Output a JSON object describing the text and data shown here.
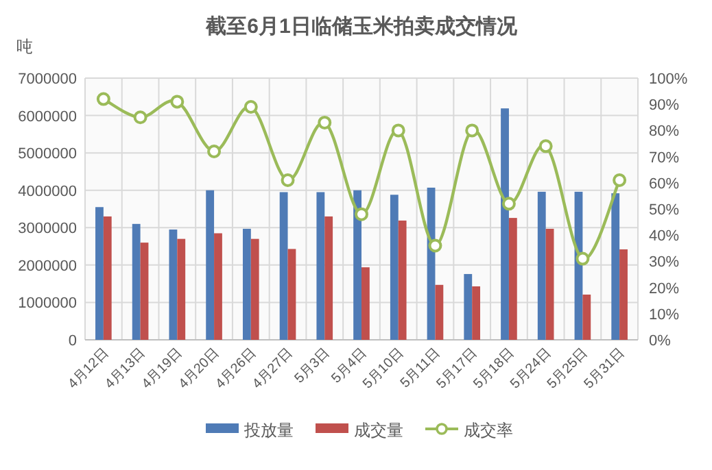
{
  "chart_data": {
    "type": "bar",
    "title": "截至6月1日临储玉米拍卖成交情况",
    "ylabel": "吨",
    "categories": [
      "4月12日",
      "4月13日",
      "4月19日",
      "4月20日",
      "4月26日",
      "4月27日",
      "5月3日",
      "5月4日",
      "5月10日",
      "5月11日",
      "5月17日",
      "5月18日",
      "5月24日",
      "5月25日",
      "5月31日"
    ],
    "series": [
      {
        "name": "投放量",
        "color": "#4f7bb6",
        "values": [
          3550000,
          3100000,
          2950000,
          4000000,
          2970000,
          3950000,
          3950000,
          4000000,
          3880000,
          4070000,
          1760000,
          6190000,
          3960000,
          3960000,
          3920000
        ]
      },
      {
        "name": "成交量",
        "color": "#c0504d",
        "values": [
          3300000,
          2600000,
          2700000,
          2850000,
          2700000,
          2430000,
          3300000,
          1940000,
          3190000,
          1470000,
          1430000,
          3260000,
          2970000,
          1210000,
          2420000
        ]
      },
      {
        "name": "成交率",
        "type": "line",
        "axis": "y2",
        "color": "#9bbb59",
        "values": [
          92,
          85,
          91,
          72,
          89,
          61,
          83,
          48,
          80,
          36,
          80,
          52,
          74,
          31,
          61
        ]
      }
    ],
    "ylim": [
      0,
      7000000
    ],
    "yticks": [
      0,
      1000000,
      2000000,
      3000000,
      4000000,
      5000000,
      6000000,
      7000000
    ],
    "y2lim": [
      0,
      100
    ],
    "y2ticks": [
      {
        "value": 0,
        "label": "0%"
      },
      {
        "value": 10,
        "label": "10%"
      },
      {
        "value": 20,
        "label": "20%"
      },
      {
        "value": 30,
        "label": "30%"
      },
      {
        "value": 40,
        "label": "40%"
      },
      {
        "value": 50,
        "label": "50%"
      },
      {
        "value": 60,
        "label": "60%"
      },
      {
        "value": 70,
        "label": "70%"
      },
      {
        "value": 80,
        "label": "80%"
      },
      {
        "value": 90,
        "label": "90%"
      },
      {
        "value": 100,
        "label": "100%"
      }
    ],
    "grid": true,
    "legend": "bottom",
    "marker": "circle"
  }
}
